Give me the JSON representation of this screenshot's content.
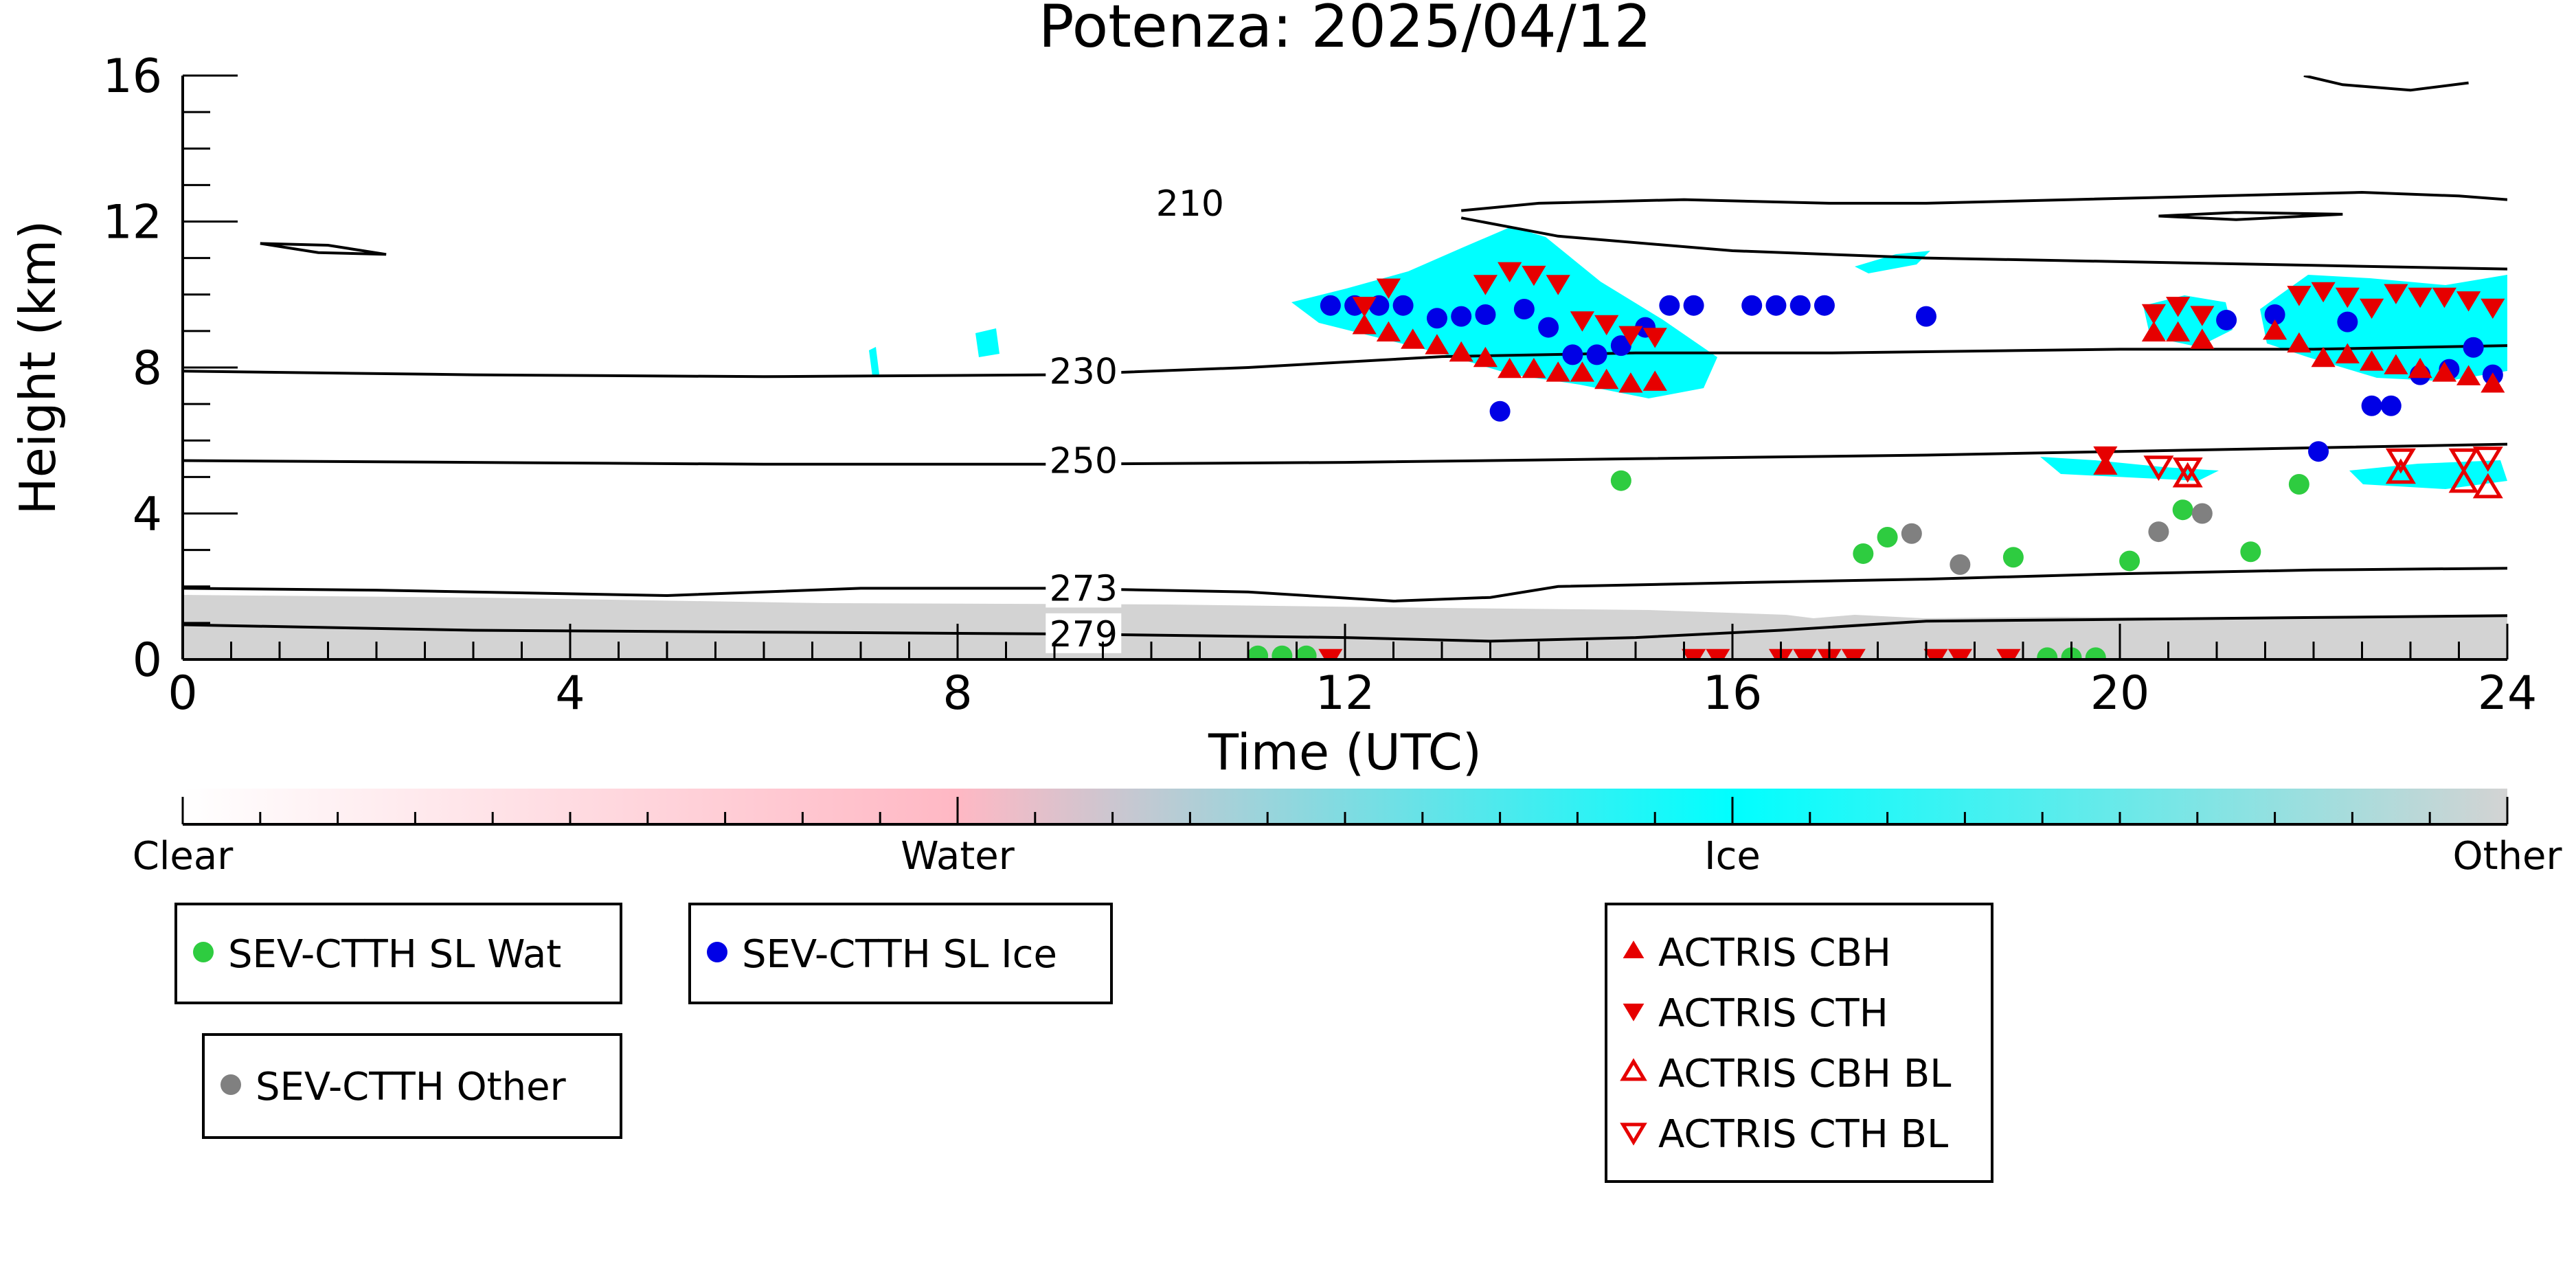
{
  "chart_data": {
    "type": "scatter",
    "title": "Potenza: 2025/04/12",
    "xlabel": "Time (UTC)",
    "ylabel": "Height (km)",
    "xlim": [
      0,
      24
    ],
    "ylim": [
      0,
      16
    ],
    "xticks": [
      0,
      4,
      8,
      12,
      16,
      20,
      24
    ],
    "yticks": [
      0,
      4,
      8,
      12,
      16
    ],
    "grid": false,
    "contours": [
      {
        "label": "210",
        "label_at": [
          10.4,
          12.5
        ],
        "points": [
          [
            13.2,
            12.3
          ],
          [
            14.0,
            12.5
          ],
          [
            15.5,
            12.6
          ],
          [
            17.0,
            12.5
          ],
          [
            18.0,
            12.5
          ],
          [
            19.5,
            12.6
          ],
          [
            21.0,
            12.7
          ],
          [
            22.5,
            12.8
          ],
          [
            23.5,
            12.7
          ],
          [
            24,
            12.6
          ]
        ]
      },
      {
        "label": "",
        "label_at": null,
        "points": [
          [
            13.2,
            12.1
          ],
          [
            14.2,
            11.6
          ],
          [
            16.0,
            11.2
          ],
          [
            18.0,
            11.0
          ],
          [
            20.0,
            10.9
          ],
          [
            22.0,
            10.8
          ],
          [
            24,
            10.7
          ]
        ]
      },
      {
        "label": "",
        "label_at": null,
        "points": [
          [
            0.8,
            11.4
          ],
          [
            1.5,
            11.35
          ],
          [
            2.1,
            11.1
          ],
          [
            1.4,
            11.15
          ],
          [
            0.8,
            11.4
          ]
        ]
      },
      {
        "label": "",
        "label_at": null,
        "points": [
          [
            20.4,
            12.15
          ],
          [
            21.2,
            12.25
          ],
          [
            22.3,
            12.2
          ],
          [
            21.2,
            12.05
          ],
          [
            20.4,
            12.15
          ]
        ]
      },
      {
        "label": "",
        "label_at": null,
        "points": [
          [
            21.9,
            16.0
          ],
          [
            22.3,
            15.75
          ],
          [
            23.0,
            15.6
          ],
          [
            23.6,
            15.8
          ]
        ]
      },
      {
        "label": "230",
        "label_at": [
          9.3,
          7.9
        ],
        "points": [
          [
            0,
            7.9
          ],
          [
            3,
            7.8
          ],
          [
            6,
            7.75
          ],
          [
            9,
            7.8
          ],
          [
            11,
            8.0
          ],
          [
            13,
            8.3
          ],
          [
            15,
            8.4
          ],
          [
            17,
            8.4
          ],
          [
            20,
            8.5
          ],
          [
            22,
            8.5
          ],
          [
            24,
            8.6
          ]
        ]
      },
      {
        "label": "250",
        "label_at": [
          9.3,
          5.45
        ],
        "points": [
          [
            0,
            5.45
          ],
          [
            3,
            5.4
          ],
          [
            6,
            5.35
          ],
          [
            9,
            5.35
          ],
          [
            12,
            5.4
          ],
          [
            15,
            5.5
          ],
          [
            18,
            5.6
          ],
          [
            20,
            5.7
          ],
          [
            22,
            5.8
          ],
          [
            24,
            5.9
          ]
        ]
      },
      {
        "label": "273",
        "label_at": [
          9.3,
          1.95
        ],
        "points": [
          [
            0,
            1.95
          ],
          [
            2,
            1.9
          ],
          [
            5,
            1.75
          ],
          [
            7,
            1.95
          ],
          [
            9,
            1.95
          ],
          [
            11,
            1.85
          ],
          [
            12.5,
            1.6
          ],
          [
            13.5,
            1.7
          ],
          [
            14.2,
            2.0
          ],
          [
            16,
            2.1
          ],
          [
            18,
            2.2
          ],
          [
            20,
            2.35
          ],
          [
            22,
            2.45
          ],
          [
            24,
            2.5
          ]
        ]
      },
      {
        "label": "279",
        "label_at": [
          9.3,
          0.7
        ],
        "points": [
          [
            0,
            0.95
          ],
          [
            3,
            0.8
          ],
          [
            6,
            0.75
          ],
          [
            9,
            0.7
          ],
          [
            12,
            0.6
          ],
          [
            13.5,
            0.5
          ],
          [
            15,
            0.6
          ],
          [
            16.5,
            0.8
          ],
          [
            18,
            1.05
          ],
          [
            20,
            1.1
          ],
          [
            22,
            1.15
          ],
          [
            24,
            1.2
          ]
        ]
      }
    ],
    "series": [
      {
        "name": "SEV-CTTH SL Wat",
        "marker": "circle",
        "color": "#2ecc40",
        "x": [
          11.1,
          11.35,
          11.6,
          14.85,
          17.35,
          17.6,
          18.9,
          19.25,
          19.5,
          19.75,
          20.1,
          20.65,
          21.35,
          21.85
        ],
        "y": [
          0.1,
          0.1,
          0.1,
          4.9,
          2.9,
          3.35,
          2.8,
          0.05,
          0.05,
          0.05,
          2.7,
          4.1,
          2.95,
          4.8
        ]
      },
      {
        "name": "SEV-CTTH SL Ice",
        "marker": "circle",
        "color": "#0000e6",
        "x": [
          11.85,
          12.1,
          12.35,
          12.6,
          12.95,
          13.2,
          13.45,
          13.6,
          13.85,
          14.1,
          14.35,
          14.6,
          14.85,
          15.1,
          15.35,
          15.6,
          16.2,
          16.45,
          16.7,
          16.95,
          18.0,
          21.1,
          21.6,
          22.05,
          22.35,
          22.6,
          22.8,
          23.1,
          23.4,
          23.65,
          23.85
        ],
        "y": [
          9.7,
          9.7,
          9.7,
          9.7,
          9.35,
          9.4,
          9.45,
          6.8,
          9.6,
          9.1,
          8.35,
          8.35,
          8.6,
          9.1,
          9.7,
          9.7,
          9.7,
          9.7,
          9.7,
          9.7,
          9.4,
          9.3,
          9.45,
          5.7,
          9.25,
          6.95,
          6.95,
          7.8,
          7.95,
          8.55,
          7.8
        ]
      },
      {
        "name": "SEV-CTTH Other",
        "marker": "circle",
        "color": "#808080",
        "x": [
          17.85,
          18.35,
          20.4,
          20.85
        ],
        "y": [
          3.45,
          2.6,
          3.5,
          4.0
        ]
      },
      {
        "name": "ACTRIS CBH",
        "marker": "triangle-up",
        "color": "#e60000",
        "x": [
          12.2,
          12.45,
          12.7,
          12.95,
          13.2,
          13.45,
          13.7,
          13.95,
          14.2,
          14.45,
          14.7,
          14.95,
          15.2,
          19.85,
          20.35,
          20.6,
          20.85,
          21.6,
          21.85,
          22.1,
          22.35,
          22.6,
          22.85,
          23.1,
          23.35,
          23.6,
          23.85
        ],
        "y": [
          9.15,
          8.95,
          8.75,
          8.6,
          8.4,
          8.25,
          7.95,
          7.95,
          7.85,
          7.85,
          7.65,
          7.55,
          7.6,
          5.3,
          8.95,
          8.95,
          8.75,
          9.0,
          8.65,
          8.25,
          8.35,
          8.15,
          8.05,
          7.95,
          7.85,
          7.75,
          7.55
        ]
      },
      {
        "name": "ACTRIS CTH",
        "marker": "triangle-down",
        "color": "#e60000",
        "x": [
          12.2,
          12.45,
          13.45,
          13.7,
          13.95,
          14.2,
          14.45,
          14.7,
          14.95,
          15.2,
          19.85,
          20.35,
          20.6,
          20.85,
          21.85,
          22.1,
          22.35,
          22.6,
          22.85,
          23.1,
          23.35,
          23.6,
          23.85,
          11.85,
          15.6,
          15.85,
          16.5,
          16.75,
          17.0,
          17.25,
          18.1,
          18.35,
          18.85
        ],
        "y": [
          9.7,
          10.2,
          10.3,
          10.65,
          10.55,
          10.3,
          9.3,
          9.2,
          8.9,
          8.85,
          5.6,
          9.5,
          9.7,
          9.45,
          10.0,
          10.1,
          9.95,
          9.65,
          10.05,
          9.95,
          9.95,
          9.85,
          9.65,
          0.05,
          0.05,
          0.05,
          0.05,
          0.05,
          0.05,
          0.05,
          0.05,
          0.05,
          0.05
        ]
      },
      {
        "name": "ACTRIS CBH BL",
        "marker": "triangle-up-open",
        "color": "#e60000",
        "x": [
          20.7,
          23.55,
          23.8,
          22.9
        ],
        "y": [
          5.0,
          4.85,
          4.7,
          5.1
        ]
      },
      {
        "name": "ACTRIS CTH BL",
        "marker": "triangle-down-open",
        "color": "#e60000",
        "x": [
          20.4,
          20.7,
          22.9,
          23.55,
          23.8
        ],
        "y": [
          5.3,
          5.25,
          5.5,
          5.5,
          5.55
        ]
      }
    ],
    "phase_colorbar": {
      "labels": [
        "Clear",
        "Water",
        "Ice",
        "Other"
      ],
      "colors": [
        "#ffffff",
        "#ffb8c4",
        "#00ffff",
        "#d3d3d3"
      ]
    },
    "legend_placement": "bottom"
  }
}
